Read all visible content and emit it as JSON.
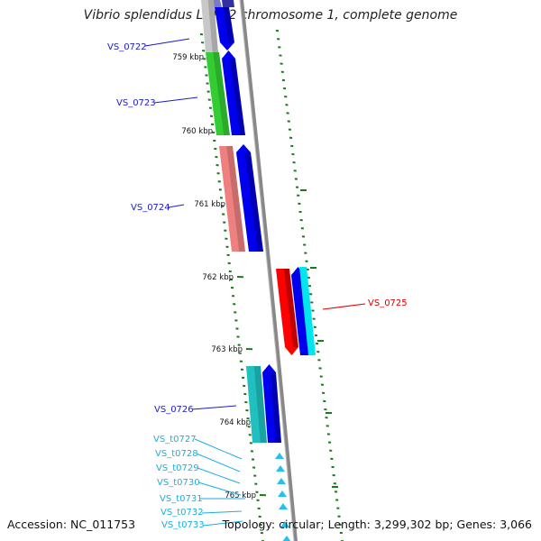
{
  "title": "Vibrio splendidus LGP32 chromosome 1, complete genome",
  "footer": {
    "accession": "Accession: NC_011753",
    "summary": "Topology: circular; Length: 3,299,302 bp; Genes: 3,066"
  },
  "colors": {
    "backbone": "#888888",
    "forward_arrow": "#0000ee",
    "tick": "#1a7a1a",
    "label_blue": "#1a1acc",
    "label_red": "#dd0000",
    "label_cyan": "#1aaee0"
  },
  "ticks": [
    "759 kbp",
    "760 kbp",
    "761 kbp",
    "762 kbp",
    "763 kbp",
    "764 kbp",
    "765 kbp"
  ],
  "genes": [
    {
      "label": "VS_0722",
      "color": "#c8c8c8",
      "label_color": "#1a1acc"
    },
    {
      "label": "VS_0723",
      "color": "#33cc33",
      "label_color": "#1a1acc"
    },
    {
      "label": "VS_0724",
      "color": "#ee8080",
      "label_color": "#1a1acc"
    },
    {
      "label": "VS_0725",
      "color": "#ff0000",
      "label_color": "#dd0000"
    },
    {
      "label": "VS_0726",
      "color": "#20c0c0",
      "label_color": "#1a1acc"
    }
  ],
  "trnas": [
    {
      "label": "VS_t0727"
    },
    {
      "label": "VS_t0728"
    },
    {
      "label": "VS_t0729"
    },
    {
      "label": "VS_t0730"
    },
    {
      "label": "VS_t0731"
    },
    {
      "label": "VS_t0732"
    },
    {
      "label": "VS_t0733"
    }
  ]
}
